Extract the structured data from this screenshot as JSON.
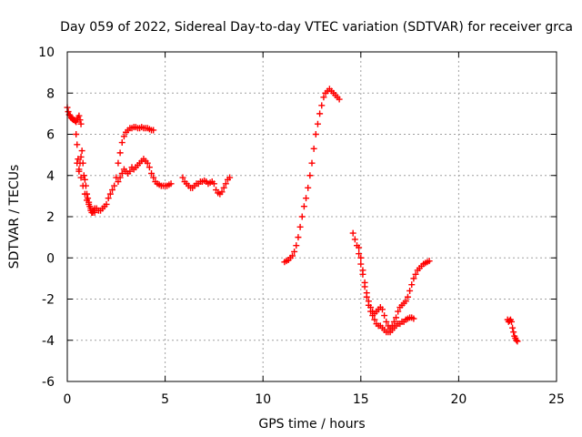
{
  "chart_data": {
    "type": "scatter",
    "title": "Day 059 of 2022, Sidereal Day-to-day VTEC variation (SDTVAR) for receiver grca",
    "xlabel": "GPS time / hours",
    "ylabel": "SDTVAR / TECUs",
    "xlim": [
      0,
      25
    ],
    "ylim": [
      -6,
      10
    ],
    "x_ticks": [
      0,
      5,
      10,
      15,
      20,
      25
    ],
    "y_ticks": [
      -6,
      -4,
      -2,
      0,
      2,
      4,
      6,
      8,
      10
    ],
    "x_tick_labels": [
      "0",
      "5",
      "10",
      "15",
      "20",
      "25"
    ],
    "y_tick_labels": [
      "-6",
      "-4",
      "-2",
      "0",
      "2",
      "4",
      "6",
      "8",
      "10"
    ],
    "grid": true,
    "marker": "+",
    "color": "#ff0000",
    "series": [
      {
        "x": [
          0.0,
          0.05,
          0.1,
          0.15,
          0.2,
          0.25,
          0.3,
          0.35,
          0.4,
          0.45,
          0.5,
          0.55,
          0.6,
          0.65,
          0.7
        ],
        "y": [
          7.3,
          7.1,
          6.95,
          6.9,
          6.8,
          6.75,
          6.7,
          6.7,
          6.65,
          6.6,
          6.7,
          6.8,
          6.9,
          6.7,
          6.5
        ]
      },
      {
        "x": [
          0.45,
          0.5,
          0.55,
          0.6,
          0.65,
          0.7,
          0.75,
          0.8,
          0.85,
          0.9,
          0.95,
          1.0,
          1.05,
          1.1,
          1.15,
          1.2,
          1.25,
          1.3,
          1.35,
          1.4,
          1.5,
          1.6,
          1.7,
          1.8,
          1.9,
          2.0,
          2.1,
          2.2,
          2.3,
          2.4
        ],
        "y": [
          6.0,
          5.5,
          4.8,
          4.2,
          4.6,
          4.9,
          5.2,
          4.6,
          4.0,
          3.8,
          3.5,
          3.1,
          2.9,
          2.7,
          2.5,
          2.3,
          2.2,
          2.2,
          2.3,
          2.4,
          2.4,
          2.3,
          2.3,
          2.4,
          2.5,
          2.6,
          2.9,
          3.1,
          3.3,
          3.5
        ]
      },
      {
        "x": [
          0.5,
          0.6,
          0.7,
          0.8,
          0.9,
          1.0,
          1.1,
          1.2,
          1.3,
          1.4
        ],
        "y": [
          4.6,
          4.3,
          3.9,
          3.5,
          3.1,
          2.8,
          2.6,
          2.4,
          2.3,
          2.2
        ]
      },
      {
        "x": [
          2.5,
          2.6,
          2.7,
          2.8,
          2.9,
          3.0,
          3.1,
          3.2,
          3.3,
          3.4,
          3.5,
          3.6,
          3.7,
          3.8,
          3.9,
          4.0,
          4.1,
          4.2,
          4.3,
          4.4
        ],
        "y": [
          3.9,
          4.6,
          5.1,
          5.6,
          5.9,
          6.1,
          6.2,
          6.3,
          6.3,
          6.35,
          6.35,
          6.3,
          6.3,
          6.35,
          6.3,
          6.3,
          6.3,
          6.25,
          6.2,
          6.2
        ]
      },
      {
        "x": [
          2.6,
          2.7,
          2.8,
          2.9,
          3.0,
          3.1,
          3.2,
          3.3,
          3.4,
          3.5,
          3.6,
          3.7,
          3.8,
          3.9,
          4.0,
          4.1,
          4.2,
          4.3,
          4.4,
          4.5,
          4.6,
          4.7,
          4.8,
          4.9,
          5.0,
          5.1,
          5.2,
          5.3
        ],
        "y": [
          3.7,
          3.9,
          4.1,
          4.3,
          4.2,
          4.1,
          4.2,
          4.4,
          4.3,
          4.4,
          4.5,
          4.6,
          4.7,
          4.8,
          4.7,
          4.6,
          4.4,
          4.1,
          3.9,
          3.7,
          3.6,
          3.55,
          3.5,
          3.5,
          3.5,
          3.5,
          3.55,
          3.6
        ]
      },
      {
        "x": [
          5.9,
          6.0,
          6.1,
          6.2,
          6.3,
          6.4,
          6.5,
          6.6,
          6.7,
          6.8,
          6.9,
          7.0,
          7.1,
          7.2,
          7.3,
          7.4,
          7.5,
          7.6,
          7.7,
          7.8,
          7.9,
          8.0,
          8.1,
          8.2,
          8.3
        ],
        "y": [
          3.9,
          3.7,
          3.6,
          3.5,
          3.4,
          3.4,
          3.5,
          3.6,
          3.6,
          3.7,
          3.7,
          3.75,
          3.7,
          3.6,
          3.65,
          3.7,
          3.6,
          3.3,
          3.15,
          3.1,
          3.2,
          3.4,
          3.6,
          3.8,
          3.9
        ]
      },
      {
        "x": [
          11.1,
          11.2,
          11.3,
          11.4,
          11.5,
          11.6,
          11.7,
          11.8,
          11.9,
          12.0,
          12.1,
          12.2,
          12.3,
          12.4,
          12.5,
          12.6,
          12.7,
          12.8,
          12.9,
          13.0,
          13.1,
          13.2,
          13.3,
          13.4,
          13.5,
          13.6,
          13.7,
          13.8,
          13.9
        ],
        "y": [
          -0.2,
          -0.15,
          -0.1,
          0.0,
          0.1,
          0.3,
          0.6,
          1.0,
          1.5,
          2.0,
          2.5,
          2.9,
          3.4,
          4.0,
          4.6,
          5.3,
          6.0,
          6.5,
          7.0,
          7.4,
          7.8,
          8.0,
          8.1,
          8.2,
          8.1,
          8.0,
          7.9,
          7.8,
          7.7
        ]
      },
      {
        "x": [
          14.6,
          14.7,
          14.8,
          14.9,
          15.0,
          15.1,
          15.2,
          15.3,
          15.4,
          15.5,
          15.6,
          15.7,
          15.8,
          15.9,
          16.0,
          16.1,
          16.2,
          16.3,
          16.4,
          16.5,
          16.6,
          16.7,
          16.8,
          16.9,
          17.0,
          17.1,
          17.2,
          17.3,
          17.4,
          17.5,
          17.6,
          17.7
        ],
        "y": [
          1.2,
          0.9,
          0.6,
          0.2,
          -0.3,
          -0.8,
          -1.4,
          -1.9,
          -2.3,
          -2.6,
          -2.8,
          -3.0,
          -3.2,
          -3.3,
          -3.3,
          -3.4,
          -3.5,
          -3.6,
          -3.6,
          -3.6,
          -3.5,
          -3.4,
          -3.3,
          -3.2,
          -3.2,
          -3.1,
          -3.1,
          -3.0,
          -2.95,
          -2.9,
          -2.9,
          -2.95
        ]
      },
      {
        "x": [
          14.9,
          15.0,
          15.1,
          15.2,
          15.3,
          15.4,
          15.5,
          15.6,
          15.7,
          15.8,
          15.9,
          16.0,
          16.1,
          16.2,
          16.3,
          16.4,
          16.5,
          16.6,
          16.7,
          16.8,
          16.9,
          17.0,
          17.1,
          17.2,
          17.3,
          17.4,
          17.5,
          17.6,
          17.7,
          17.8,
          17.9,
          18.0,
          18.1,
          18.2,
          18.3,
          18.4,
          18.5
        ],
        "y": [
          0.5,
          0.0,
          -0.6,
          -1.2,
          -1.7,
          -2.1,
          -2.4,
          -2.6,
          -2.7,
          -2.6,
          -2.5,
          -2.4,
          -2.5,
          -2.8,
          -3.1,
          -3.3,
          -3.4,
          -3.3,
          -3.1,
          -2.9,
          -2.6,
          -2.4,
          -2.3,
          -2.2,
          -2.1,
          -1.9,
          -1.6,
          -1.3,
          -1.0,
          -0.8,
          -0.6,
          -0.5,
          -0.4,
          -0.3,
          -0.25,
          -0.2,
          -0.15
        ]
      },
      {
        "x": [
          22.5,
          22.55,
          22.6,
          22.65,
          22.7,
          22.75,
          22.8,
          22.85,
          22.9,
          22.95,
          23.0
        ],
        "y": [
          -3.0,
          -3.1,
          -3.05,
          -3.0,
          -3.1,
          -3.4,
          -3.6,
          -3.8,
          -3.9,
          -4.0,
          -4.05
        ]
      }
    ]
  }
}
